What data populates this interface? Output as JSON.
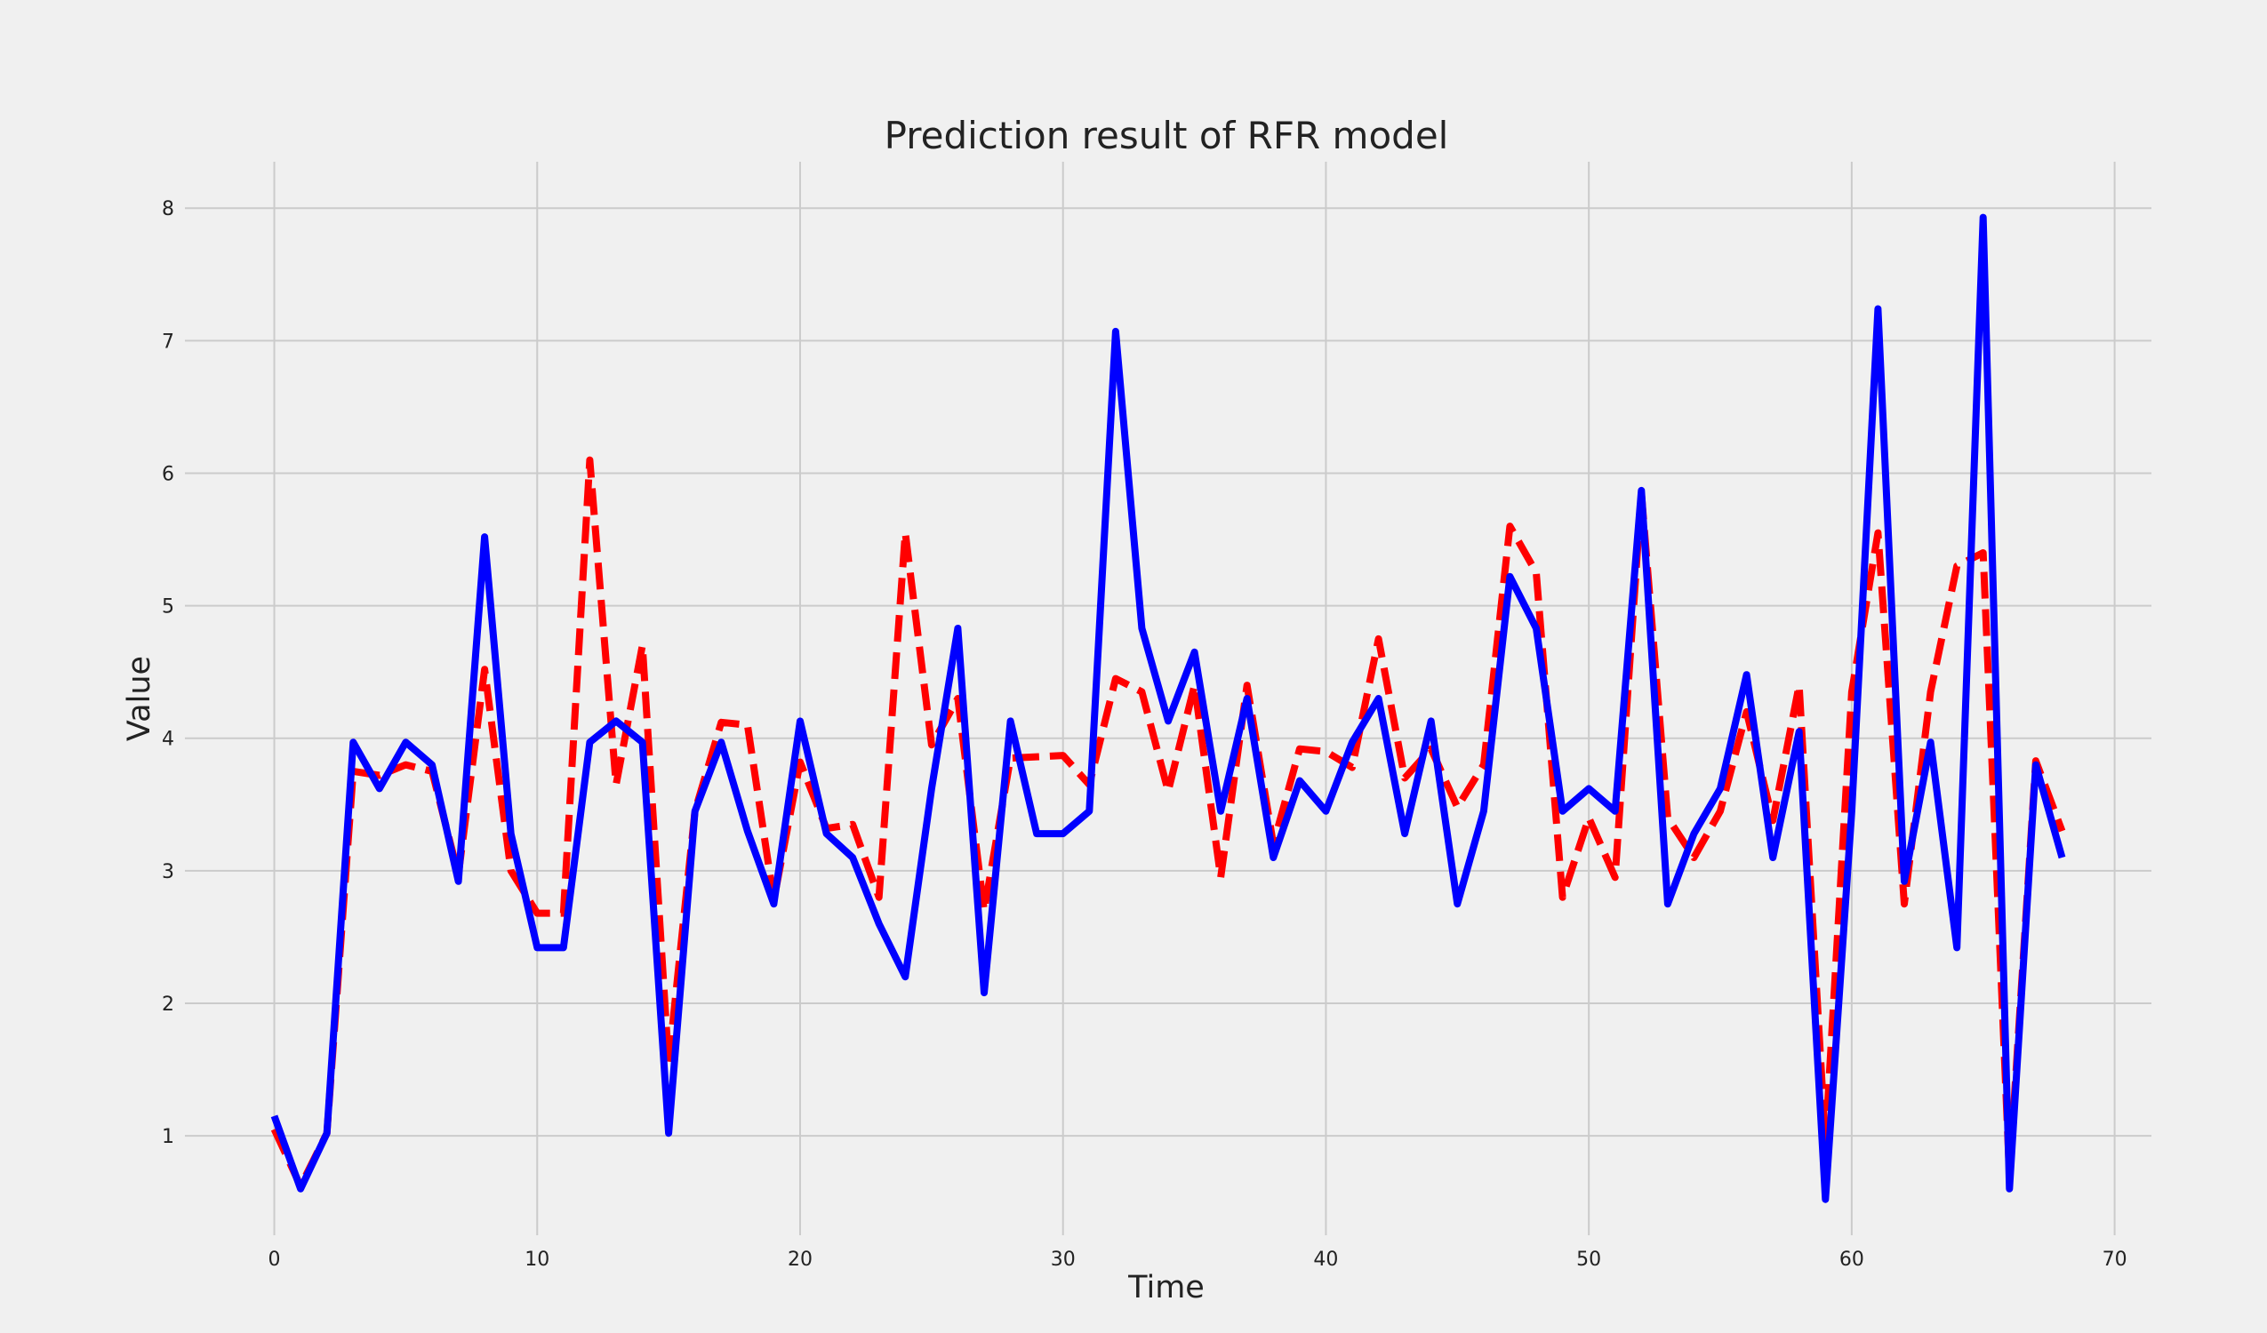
{
  "chart_data": {
    "type": "line",
    "title": "Prediction result of RFR model",
    "xlabel": "Time",
    "ylabel": "Value",
    "xlim": [
      -3.4,
      71.4
    ],
    "ylim": [
      0.25,
      8.35
    ],
    "xticks": [
      0,
      10,
      20,
      30,
      40,
      50,
      60,
      70
    ],
    "yticks": [
      1,
      2,
      3,
      4,
      5,
      6,
      7,
      8
    ],
    "grid": true,
    "legend": "none",
    "background": "#f0f0f0",
    "grid_color": "#cbcbcb",
    "series": [
      {
        "style": "dashed",
        "color": "#ff0000",
        "x": [
          0,
          1,
          2,
          3,
          4,
          5,
          6,
          7,
          8,
          9,
          10,
          11,
          12,
          13,
          14,
          15,
          16,
          17,
          18,
          19,
          20,
          21,
          22,
          23,
          24,
          25,
          26,
          27,
          28,
          29,
          30,
          31,
          32,
          33,
          34,
          35,
          36,
          37,
          38,
          39,
          40,
          41,
          42,
          43,
          44,
          45,
          46,
          47,
          48,
          49,
          50,
          51,
          52,
          53,
          54,
          55,
          56,
          57,
          58,
          59,
          60,
          61,
          62,
          63,
          64,
          65,
          66,
          67,
          68
        ],
        "values": [
          1.05,
          0.62,
          1.02,
          3.75,
          3.72,
          3.8,
          3.75,
          2.97,
          4.52,
          3.0,
          2.68,
          2.68,
          6.1,
          3.65,
          4.7,
          1.55,
          3.45,
          4.12,
          4.1,
          2.78,
          3.82,
          3.32,
          3.35,
          2.8,
          5.55,
          3.95,
          4.3,
          2.7,
          3.85,
          3.86,
          3.87,
          3.65,
          4.45,
          4.35,
          3.6,
          4.4,
          2.95,
          4.4,
          3.2,
          3.92,
          3.9,
          3.78,
          4.75,
          3.7,
          3.92,
          3.48,
          3.8,
          5.6,
          5.25,
          2.8,
          3.4,
          2.95,
          5.85,
          3.4,
          3.1,
          3.45,
          4.2,
          3.38,
          4.4,
          0.95,
          4.35,
          5.55,
          2.75,
          4.35,
          5.3,
          5.4,
          0.7,
          3.83,
          3.3
        ]
      },
      {
        "style": "solid",
        "color": "#0000ff",
        "x": [
          0,
          1,
          2,
          3,
          4,
          5,
          6,
          7,
          8,
          9,
          10,
          11,
          12,
          13,
          14,
          15,
          16,
          17,
          18,
          19,
          20,
          21,
          22,
          23,
          24,
          25,
          26,
          27,
          28,
          29,
          30,
          31,
          32,
          33,
          34,
          35,
          36,
          37,
          38,
          39,
          40,
          41,
          42,
          43,
          44,
          45,
          46,
          47,
          48,
          49,
          50,
          51,
          52,
          53,
          54,
          55,
          56,
          57,
          58,
          59,
          60,
          61,
          62,
          63,
          64,
          65,
          66,
          67,
          68
        ],
        "values": [
          1.15,
          0.6,
          1.02,
          3.97,
          3.62,
          3.97,
          3.8,
          2.92,
          5.52,
          3.28,
          2.42,
          2.42,
          3.97,
          4.13,
          3.97,
          1.02,
          3.45,
          3.97,
          3.3,
          2.75,
          4.13,
          3.28,
          3.1,
          2.6,
          2.2,
          3.62,
          4.83,
          2.08,
          4.13,
          3.28,
          3.28,
          3.45,
          7.07,
          4.83,
          4.13,
          4.65,
          3.45,
          4.3,
          3.1,
          3.68,
          3.45,
          3.97,
          4.3,
          3.28,
          4.13,
          2.75,
          3.45,
          5.22,
          4.83,
          3.45,
          3.62,
          3.45,
          5.87,
          2.75,
          3.28,
          3.62,
          4.48,
          3.1,
          4.05,
          0.52,
          3.45,
          7.24,
          2.92,
          3.97,
          2.42,
          7.93,
          0.6,
          3.8,
          3.1
        ]
      }
    ]
  }
}
